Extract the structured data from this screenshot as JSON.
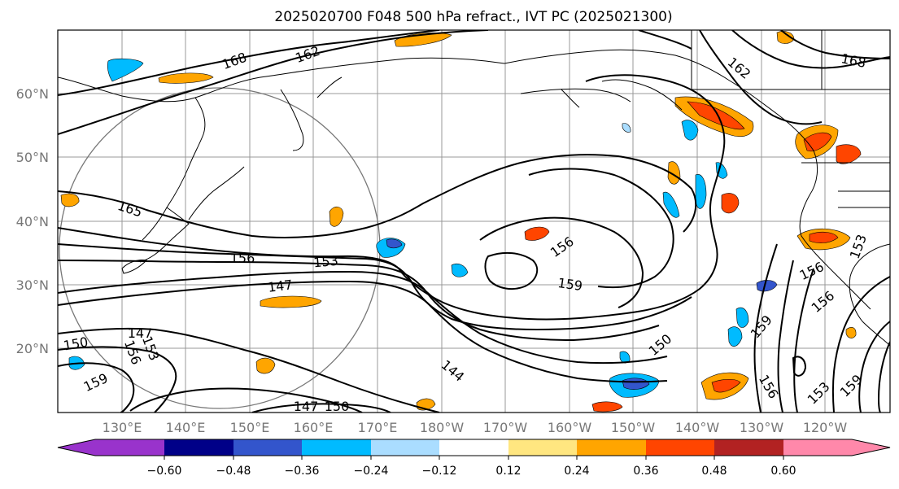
{
  "title": "2025020700 F048 500 hPa refract., IVT PC (2025021300)",
  "map": {
    "lat_labels": [
      {
        "text": "60°N",
        "lat": 60
      },
      {
        "text": "50°N",
        "lat": 50
      },
      {
        "text": "40°N",
        "lat": 40
      },
      {
        "text": "30°N",
        "lat": 30
      },
      {
        "text": "20°N",
        "lat": 20
      }
    ],
    "lon_labels": [
      "130°E",
      "140°E",
      "150°E",
      "160°E",
      "170°E",
      "180°W",
      "170°W",
      "160°W",
      "150°W",
      "140°W",
      "130°W",
      "120°W"
    ],
    "contour_labels": [
      "168",
      "162",
      "165",
      "156",
      "153",
      "147",
      "147",
      "153",
      "156",
      "150",
      "159",
      "144",
      "147",
      "150",
      "156",
      "159",
      "150",
      "156",
      "159",
      "153",
      "156",
      "159",
      "156",
      "153",
      "168",
      "162"
    ]
  },
  "colorbar": {
    "colors": [
      "#9933cc",
      "#000088",
      "#3355cc",
      "#00bbff",
      "#aaddff",
      "#ffffff",
      "#ffe680",
      "#ffa500",
      "#ff4500",
      "#b22222",
      "#ff88aa"
    ],
    "ticks": [
      "−0.60",
      "−0.48",
      "−0.36",
      "−0.24",
      "−0.12",
      "0.12",
      "0.24",
      "0.36",
      "0.48",
      "0.60"
    ]
  }
}
